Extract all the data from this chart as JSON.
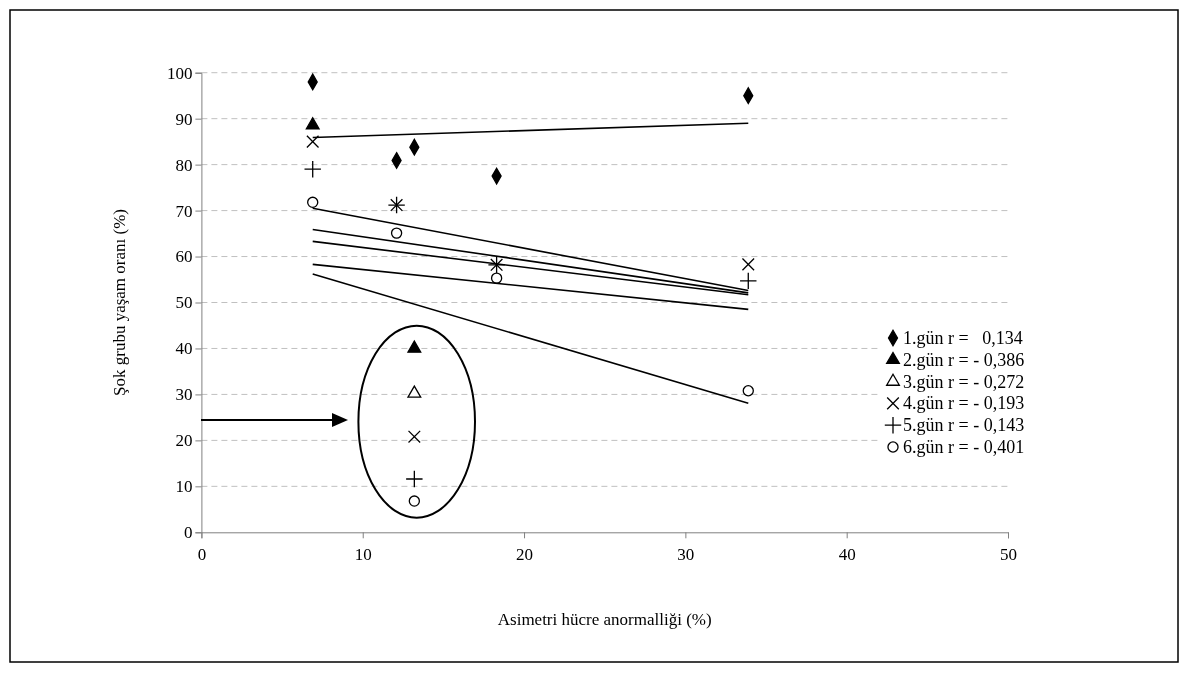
{
  "chart_data": {
    "type": "scatter",
    "xlabel": "Asimetri hücre anormalliği (%)",
    "ylabel": "Şok grubu yaşam oranı (%)",
    "xlim": [
      0,
      50
    ],
    "xticks": [
      0,
      10,
      20,
      30,
      40,
      50
    ],
    "ylim": [
      0,
      100
    ],
    "yticks": [
      0,
      10,
      20,
      30,
      40,
      50,
      60,
      70,
      80,
      90,
      100
    ],
    "grid": "y",
    "legend": "right",
    "series": [
      {
        "name": "1.gün r =   0,134",
        "color": "#000000",
        "marker": "diamond",
        "x": [
          6.9,
          12.1,
          13.2,
          18.3,
          33.9
        ],
        "values": [
          98,
          80.9,
          83.8,
          77.5,
          95
        ]
      },
      {
        "name": "2.gün r = - 0,386",
        "color": "#000000",
        "marker": "triangle",
        "x": [
          6.9,
          13.2
        ],
        "values": [
          88.6,
          40
        ]
      },
      {
        "name": "3.gün r = - 0,272",
        "color": "#000000",
        "marker": "triangle-open",
        "x": [
          13.2
        ],
        "values": [
          30.2
        ]
      },
      {
        "name": "4.gün r = - 0,193",
        "color": "#000000",
        "marker": "cross",
        "x": [
          6.9,
          12.1,
          18.3,
          33.9,
          13.2
        ],
        "values": [
          85,
          71.2,
          58.2,
          58.3,
          20.8
        ]
      },
      {
        "name": "5.gün r = - 0,143",
        "color": "#000000",
        "marker": "plus",
        "x": [
          6.9,
          12.1,
          18.3,
          33.9,
          13.2
        ],
        "values": [
          79,
          71.2,
          58.2,
          54.7,
          11.6
        ]
      },
      {
        "name": "6.gün r = - 0,401",
        "color": "#000000",
        "marker": "circle-open",
        "x": [
          6.9,
          12.1,
          18.3,
          33.9,
          13.2
        ],
        "values": [
          71.8,
          65.1,
          55.3,
          30.8,
          6.8
        ]
      },
      {
        "type": "line",
        "color": "#000000",
        "marker": "none",
        "x": [
          6.9,
          33.9
        ],
        "values": [
          85.9,
          89
        ]
      },
      {
        "type": "line",
        "color": "#000000",
        "marker": "none",
        "x": [
          6.9,
          33.9
        ],
        "values": [
          70.5,
          52.6
        ]
      },
      {
        "type": "line",
        "color": "#000000",
        "marker": "none",
        "x": [
          6.9,
          33.9
        ],
        "values": [
          65.9,
          52.1
        ]
      },
      {
        "type": "line",
        "color": "#000000",
        "marker": "none",
        "x": [
          6.9,
          33.9
        ],
        "values": [
          63.3,
          51.7
        ]
      },
      {
        "type": "line",
        "color": "#000000",
        "marker": "none",
        "x": [
          6.9,
          33.9
        ],
        "values": [
          58.3,
          48.5
        ]
      },
      {
        "type": "line",
        "color": "#000000",
        "marker": "none",
        "x": [
          6.9,
          33.9
        ],
        "values": [
          56.2,
          28.1
        ]
      }
    ]
  }
}
